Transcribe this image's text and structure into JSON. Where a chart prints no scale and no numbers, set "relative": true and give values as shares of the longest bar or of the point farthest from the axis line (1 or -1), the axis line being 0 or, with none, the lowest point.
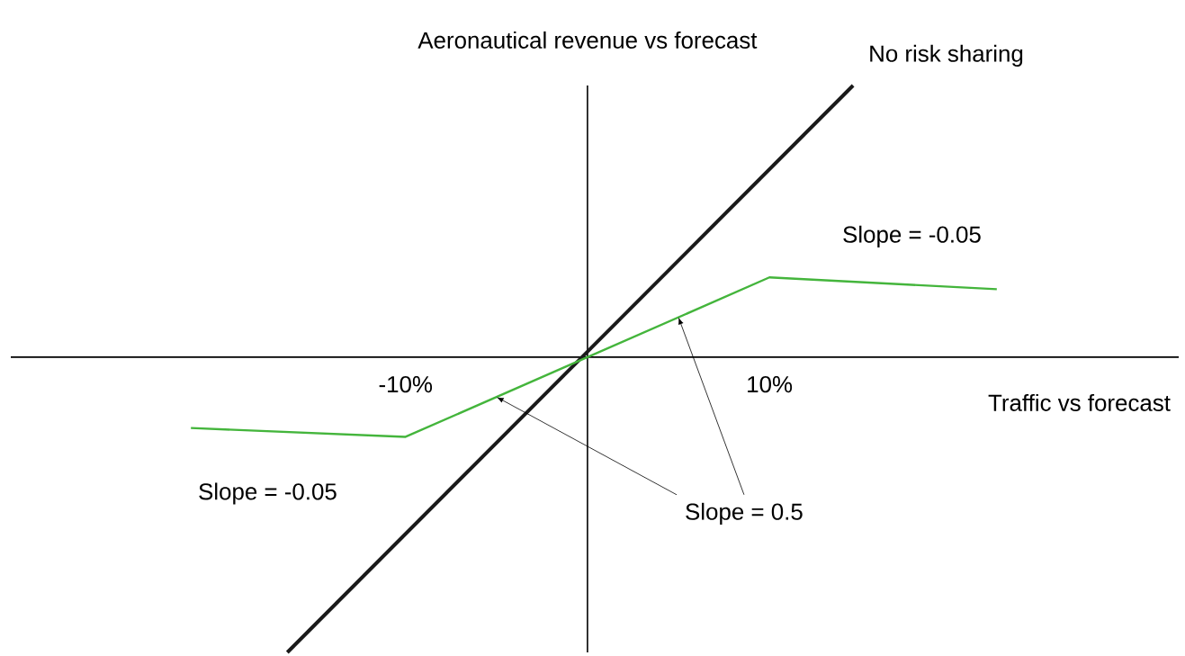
{
  "chart_data": {
    "type": "line",
    "relative": true,
    "xlabel": "Traffic vs forecast",
    "ylabel": "Aeronautical revenue vs forecast",
    "xlim": [
      -31.7,
      32.5
    ],
    "xticks": [
      {
        "value": -10,
        "label": "-10%"
      },
      {
        "value": 10,
        "label": "10%"
      }
    ],
    "series": [
      {
        "name": "No risk sharing",
        "color": "#1a1a1a",
        "x": [
          -16.5,
          14.6
        ],
        "values": [
          -1,
          0.92
        ]
      },
      {
        "color": "#44b53c",
        "x": [
          -21.8,
          -10,
          0,
          10,
          22.5
        ],
        "values": [
          -0.24,
          -0.27,
          0,
          0.27,
          0.23
        ]
      }
    ],
    "annotations": [
      "Slope = -0.05",
      "Slope = -0.05",
      "Slope = 0.5"
    ],
    "grid": false
  }
}
